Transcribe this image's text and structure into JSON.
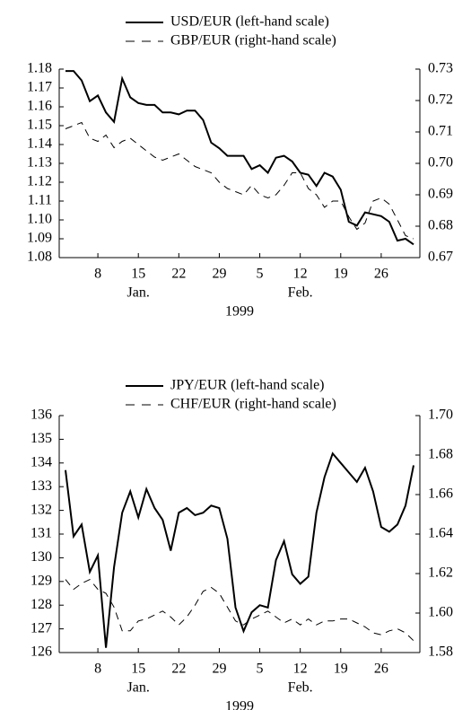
{
  "chart_data": [
    {
      "type": "line",
      "categories": [
        null,
        null,
        null,
        null,
        "8",
        null,
        null,
        null,
        null,
        "15",
        null,
        null,
        null,
        null,
        "22",
        null,
        null,
        null,
        null,
        "29",
        null,
        null,
        null,
        null,
        "5",
        null,
        null,
        null,
        null,
        "12",
        null,
        null,
        null,
        null,
        "19",
        null,
        null,
        null,
        null,
        "26",
        null,
        null,
        null,
        null
      ],
      "months": [
        "Jan.",
        "Feb."
      ],
      "xlabel": "1999",
      "ylim": [
        1.08,
        1.18
      ],
      "yticks": [
        {
          "value": 1.08,
          "label": "1.08"
        },
        1.09,
        {
          "value": 1.1,
          "label": "1.10"
        },
        1.11,
        1.12,
        1.13,
        1.14,
        1.15,
        1.16,
        1.17,
        1.18
      ],
      "y2lim": [
        0.67,
        0.73
      ],
      "y2ticks": [
        0.67,
        0.68,
        0.69,
        {
          "value": 0.7,
          "label": "0.70"
        },
        0.71,
        0.72,
        0.73
      ],
      "series": [
        {
          "name": "USD/EUR (left-hand scale)",
          "color": "#000000",
          "dash": false,
          "values": [
            1.179,
            1.179,
            1.174,
            1.163,
            1.166,
            1.157,
            1.152,
            1.175,
            1.165,
            1.162,
            1.161,
            1.161,
            1.157,
            1.157,
            1.156,
            1.158,
            1.158,
            1.153,
            1.141,
            1.138,
            1.134,
            1.134,
            1.134,
            1.127,
            1.129,
            1.125,
            1.133,
            1.134,
            1.131,
            1.125,
            1.124,
            1.118,
            1.125,
            1.123,
            1.116,
            1.099,
            1.097,
            1.104,
            1.103,
            1.102,
            1.099,
            1.089,
            1.09,
            1.087
          ]
        },
        {
          "name": "GBP/EUR (right-hand scale)",
          "color": "#000000",
          "dash": true,
          "axis": "y2",
          "values": [
            0.711,
            0.712,
            0.713,
            0.708,
            0.707,
            0.709,
            0.705,
            0.707,
            0.708,
            0.706,
            0.704,
            0.702,
            0.701,
            0.702,
            0.703,
            0.701,
            0.699,
            0.698,
            0.697,
            0.694,
            0.692,
            0.691,
            0.69,
            0.693,
            0.69,
            0.689,
            0.69,
            0.693,
            0.697,
            0.697,
            0.692,
            0.69,
            0.686,
            0.688,
            0.688,
            0.683,
            0.679,
            0.681,
            0.688,
            0.689,
            0.687,
            0.682,
            0.677,
            0.676
          ]
        }
      ]
    },
    {
      "type": "line",
      "categories": [
        null,
        null,
        null,
        null,
        "8",
        null,
        null,
        null,
        null,
        "15",
        null,
        null,
        null,
        null,
        "22",
        null,
        null,
        null,
        null,
        "29",
        null,
        null,
        null,
        null,
        "5",
        null,
        null,
        null,
        null,
        "12",
        null,
        null,
        null,
        null,
        "19",
        null,
        null,
        null,
        null,
        "26",
        null,
        null,
        null,
        null
      ],
      "months": [
        "Jan.",
        "Feb."
      ],
      "xlabel": "1999",
      "ylim": [
        126,
        136
      ],
      "yticks": [
        126,
        127,
        128,
        129,
        130,
        131,
        132,
        133,
        134,
        135,
        136
      ],
      "y2lim": [
        1.58,
        1.7
      ],
      "y2ticks": [
        1.58,
        {
          "value": 1.6,
          "label": "1.60"
        },
        1.62,
        1.64,
        1.66,
        1.68,
        {
          "value": 1.7,
          "label": "1.70"
        }
      ],
      "series": [
        {
          "name": "JPY/EUR (left-hand scale)",
          "color": "#000000",
          "dash": false,
          "values": [
            133.7,
            130.9,
            131.4,
            129.4,
            130.1,
            126.2,
            129.6,
            131.9,
            132.8,
            131.7,
            132.9,
            132.1,
            131.6,
            130.3,
            131.9,
            132.1,
            131.8,
            131.9,
            132.2,
            132.1,
            130.8,
            127.9,
            126.9,
            127.7,
            128.0,
            127.9,
            129.9,
            130.7,
            129.3,
            128.9,
            129.2,
            131.9,
            133.4,
            134.4,
            134.0,
            133.6,
            133.2,
            133.8,
            132.8,
            131.3,
            131.1,
            131.4,
            132.2,
            133.9
          ]
        },
        {
          "name": "CHF/EUR (right-hand scale)",
          "color": "#000000",
          "dash": true,
          "axis": "y2",
          "values": [
            1.617,
            1.612,
            1.615,
            1.617,
            1.612,
            1.61,
            1.603,
            1.591,
            1.591,
            1.596,
            1.597,
            1.599,
            1.601,
            1.598,
            1.594,
            1.598,
            1.604,
            1.611,
            1.613,
            1.61,
            1.603,
            1.596,
            1.594,
            1.597,
            1.599,
            1.601,
            1.598,
            1.595,
            1.597,
            1.594,
            1.597,
            1.594,
            1.596,
            1.596,
            1.597,
            1.597,
            1.595,
            1.593,
            1.59,
            1.589,
            1.591,
            1.592,
            1.59,
            1.586
          ]
        }
      ]
    }
  ]
}
